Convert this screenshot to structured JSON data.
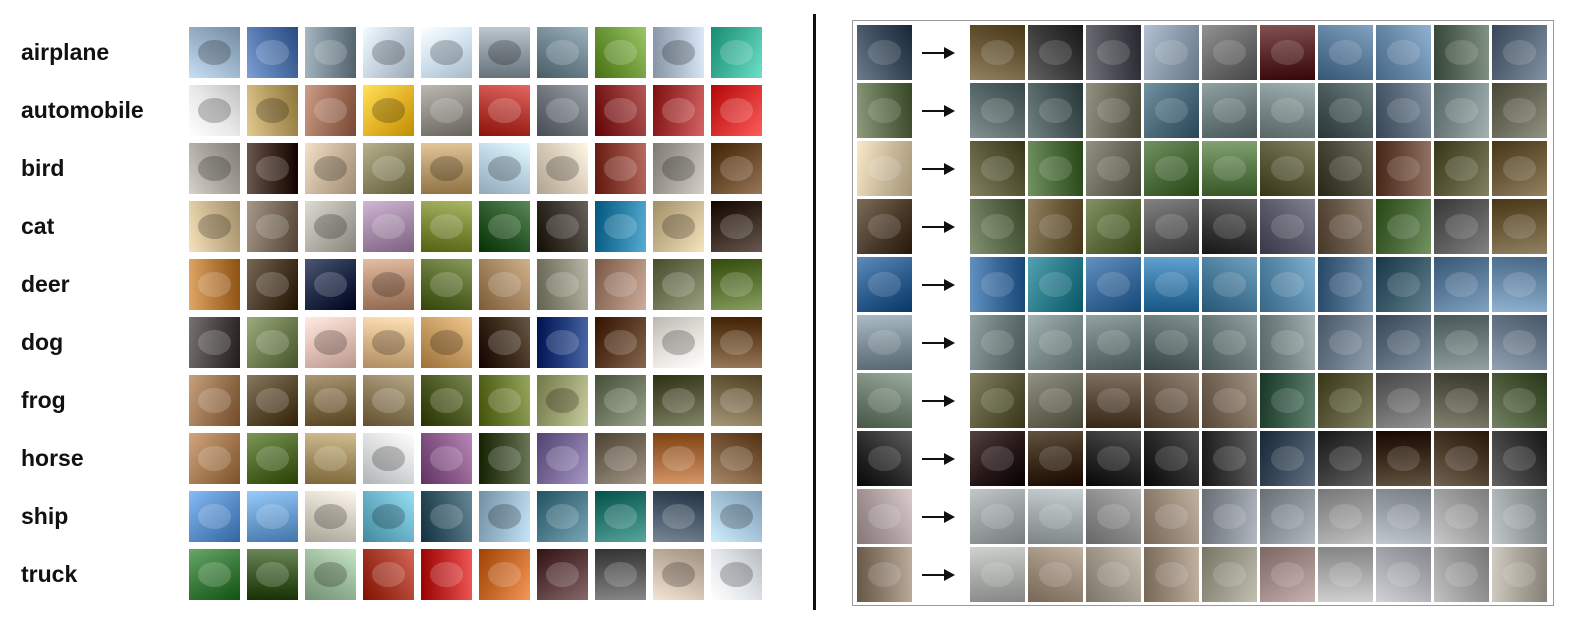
{
  "left": {
    "classes": [
      "airplane",
      "automobile",
      "bird",
      "cat",
      "deer",
      "dog",
      "frog",
      "horse",
      "ship",
      "truck"
    ],
    "palettes": [
      [
        "#9bb3c9",
        "#4f73a9",
        "#7a8a94",
        "#c4d0dc",
        "#cfe1ee",
        "#8f9aa2",
        "#6f8590",
        "#6f9a3a",
        "#aebccc",
        "#3fb49a"
      ],
      [
        "#e8e8e8",
        "#b69d62",
        "#a0705a",
        "#e5b52a",
        "#8e8c84",
        "#b53a33",
        "#6f747c",
        "#8b2c2c",
        "#a83838",
        "#d92f2f"
      ],
      [
        "#a9a49c",
        "#3c2a20",
        "#c7b49a",
        "#8a8560",
        "#b79a6c",
        "#b8d0df",
        "#d8cbb8",
        "#8a3f34",
        "#a7a29a",
        "#6b4a2b"
      ],
      [
        "#c9b58e",
        "#7a6b5c",
        "#b1aea5",
        "#a48aa8",
        "#7c8a3a",
        "#2d5a2a",
        "#3a352d",
        "#2a7fa6",
        "#c9b78f",
        "#3a2c22"
      ],
      [
        "#b57a3a",
        "#4a3a28",
        "#1f2a46",
        "#b89076",
        "#5b6e30",
        "#a48560",
        "#8b8a78",
        "#a2806e",
        "#6f7454",
        "#5a7232"
      ],
      [
        "#4a4444",
        "#6f7e50",
        "#e1bfb5",
        "#d8b68a",
        "#c49a60",
        "#3b2a1a",
        "#1f3a7a",
        "#5a3a22",
        "#e3e0da",
        "#6a4a2a"
      ],
      [
        "#9a7350",
        "#5a4a30",
        "#7f6a48",
        "#8a7a5a",
        "#4e5a24",
        "#6a7a30",
        "#9aa070",
        "#6e7860",
        "#56583c",
        "#7a6a4c"
      ],
      [
        "#a57a52",
        "#4f6a2a",
        "#a49062",
        "#dadbdc",
        "#8a5a8a",
        "#3c4a2a",
        "#7a6a9a",
        "#766a5a",
        "#a86a3a",
        "#7a5a3a"
      ],
      [
        "#5a8ec8",
        "#6a9ed0",
        "#d2ccc0",
        "#6ab2c8",
        "#3a5a6a",
        "#9ab8cc",
        "#4b7a8a",
        "#2a7a72",
        "#4a5a6a",
        "#a4c2d8"
      ],
      [
        "#3a7a3a",
        "#3f5a2a",
        "#9ab89a",
        "#a83a2a",
        "#c22a2a",
        "#c86a2a",
        "#5a3a3a",
        "#5a5a5a",
        "#c8b8a8",
        "#e0e4e8"
      ]
    ]
  },
  "right": {
    "query_palette": [
      "#3a4a5a",
      "#5a6a4a",
      "#c8b89a",
      "#4a3a2a",
      "#2a5a8a",
      "#7a8a94",
      "#6a7a6a",
      "#2a2a2a",
      "#a89a9a",
      "#8a7a6a"
    ],
    "result_palettes": [
      [
        "#6a5a3a",
        "#3a3a3a",
        "#4a4a52",
        "#8a9aaa",
        "#6a6a6a",
        "#5a2a2a",
        "#5a7a9a",
        "#6a8aaa",
        "#5a6a5a",
        "#5a6a7a"
      ],
      [
        "#5a6a6a",
        "#4a5a5a",
        "#6a6a5a",
        "#4a6a7a",
        "#6a7a7a",
        "#7a8a8a",
        "#4a5a5a",
        "#5a6a7a",
        "#7a8a8a",
        "#6a6a5a"
      ],
      [
        "#5a5a3a",
        "#4a6a3a",
        "#6a6a5a",
        "#4a6a3a",
        "#5a7a4a",
        "#5a5a3a",
        "#4a4a3a",
        "#6a4a3a",
        "#5a5a3a",
        "#6a5a3a"
      ],
      [
        "#5a6a4a",
        "#6a5a3a",
        "#5a6a3a",
        "#5a5a5a",
        "#3a3a3a",
        "#5a5a6a",
        "#6a5a4a",
        "#4a6a3a",
        "#5a5a5a",
        "#6a5a3a"
      ],
      [
        "#3a6a9a",
        "#2a7a8a",
        "#3a6a9a",
        "#3a7aa8",
        "#4a7a9a",
        "#5a8aaa",
        "#4a6a8a",
        "#3a5a6a",
        "#5a7a9a",
        "#6a8aaa"
      ],
      [
        "#6a7a7a",
        "#7a8a8a",
        "#6a7a7a",
        "#5a6a6a",
        "#6a7a7a",
        "#7a8a8a",
        "#6a7a8a",
        "#5a6a7a",
        "#6a7a7a",
        "#6a7a8a"
      ],
      [
        "#5a5a3a",
        "#6a6a5a",
        "#5a4a3a",
        "#6a5a4a",
        "#7a6a5a",
        "#3a5a4a",
        "#5a5a3a",
        "#6a6a6a",
        "#5a5a4a",
        "#4a5a3a"
      ],
      [
        "#2a1a1a",
        "#3a2a1a",
        "#2a2a2a",
        "#2a2a2a",
        "#3a3a3a",
        "#3a4a5a",
        "#3a3a3a",
        "#3a2a1a",
        "#4a3a2a",
        "#3a3a3a"
      ],
      [
        "#9aa0a0",
        "#a0a8aa",
        "#8a8a8a",
        "#9a8a7a",
        "#8a9098",
        "#8a9298",
        "#9a9a9a",
        "#9aa0a8",
        "#a0a0a0",
        "#9aa0a0"
      ],
      [
        "#a8aaa8",
        "#9a8a7a",
        "#a0988a",
        "#9a8a7a",
        "#9a9888",
        "#a08a88",
        "#a8a8a8",
        "#a8aab0",
        "#9a9a9a",
        "#a8a49a"
      ]
    ]
  }
}
